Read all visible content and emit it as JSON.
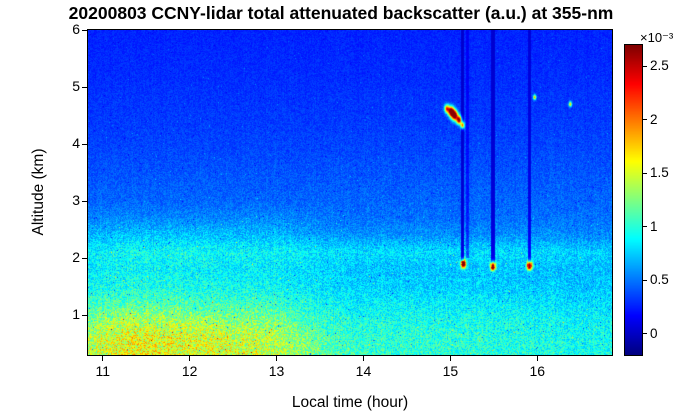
{
  "chart_data": {
    "type": "heatmap",
    "title": "20200803 CCNY-lidar total attenuated backscatter (a.u.) at 355-nm",
    "xlabel": "Local time (hour)",
    "ylabel": "Altitude (km)",
    "xlim": [
      10.83,
      16.86
    ],
    "ylim": [
      0.3,
      6
    ],
    "xticks": [
      11,
      12,
      13,
      14,
      15,
      16
    ],
    "yticks": [
      1,
      2,
      3,
      4,
      5,
      6
    ],
    "colorbar": {
      "label": "×10⁻³",
      "ticks": [
        0,
        0.5,
        1,
        1.5,
        2,
        2.5
      ],
      "cmin": -0.2,
      "cmax": 2.7,
      "colormap": "jet"
    },
    "grid": {
      "times": [
        10.83,
        11.08,
        11.33,
        11.58,
        11.84,
        12.09,
        12.34,
        12.59,
        12.84,
        13.09,
        13.34,
        13.59,
        13.85,
        14.1,
        14.35,
        14.6,
        14.85,
        15.1,
        15.35,
        15.6,
        15.86,
        16.11,
        16.36,
        16.61,
        16.86
      ],
      "altitudes": [
        6.0,
        5.7,
        5.4,
        5.1,
        4.8,
        4.5,
        4.2,
        3.9,
        3.6,
        3.3,
        3.0,
        2.7,
        2.4,
        2.1,
        1.8,
        1.5,
        1.2,
        0.9,
        0.6,
        0.3
      ],
      "values": [
        [
          0.26,
          0.26,
          0.26,
          0.26,
          0.26,
          0.26,
          0.26,
          0.26,
          0.26,
          0.26,
          0.26,
          0.26,
          0.26,
          0.26,
          0.26,
          0.26,
          0.26,
          0.26,
          0.26,
          0.26,
          0.26,
          0.26,
          0.26,
          0.26,
          0.26
        ],
        [
          0.27,
          0.27,
          0.27,
          0.27,
          0.27,
          0.27,
          0.27,
          0.27,
          0.27,
          0.27,
          0.27,
          0.27,
          0.27,
          0.27,
          0.27,
          0.27,
          0.27,
          0.27,
          0.27,
          0.27,
          0.27,
          0.27,
          0.27,
          0.27,
          0.27
        ],
        [
          0.28,
          0.28,
          0.28,
          0.28,
          0.28,
          0.28,
          0.28,
          0.28,
          0.28,
          0.28,
          0.28,
          0.28,
          0.28,
          0.28,
          0.28,
          0.28,
          0.28,
          0.28,
          0.28,
          0.28,
          0.28,
          0.28,
          0.28,
          0.28,
          0.28
        ],
        [
          0.29,
          0.29,
          0.29,
          0.29,
          0.29,
          0.29,
          0.29,
          0.29,
          0.29,
          0.29,
          0.29,
          0.29,
          0.29,
          0.29,
          0.29,
          0.29,
          0.29,
          0.29,
          0.29,
          0.29,
          0.29,
          0.29,
          0.29,
          0.29,
          0.29
        ],
        [
          0.31,
          0.31,
          0.31,
          0.31,
          0.31,
          0.31,
          0.31,
          0.31,
          0.31,
          0.31,
          0.31,
          0.31,
          0.31,
          0.31,
          0.31,
          0.31,
          0.31,
          0.31,
          0.31,
          0.31,
          0.31,
          0.31,
          0.31,
          0.31,
          0.31
        ],
        [
          0.32,
          0.32,
          0.32,
          0.32,
          0.32,
          0.32,
          0.32,
          0.32,
          0.32,
          0.32,
          0.32,
          0.32,
          0.32,
          0.32,
          0.32,
          0.32,
          0.32,
          0.32,
          0.32,
          0.32,
          0.32,
          0.32,
          0.32,
          0.32,
          0.32
        ],
        [
          0.34,
          0.34,
          0.34,
          0.34,
          0.34,
          0.34,
          0.34,
          0.34,
          0.34,
          0.34,
          0.34,
          0.34,
          0.34,
          0.34,
          0.34,
          0.34,
          0.34,
          0.34,
          0.34,
          0.34,
          0.34,
          0.34,
          0.34,
          0.34,
          0.34
        ],
        [
          0.36,
          0.36,
          0.36,
          0.36,
          0.36,
          0.36,
          0.36,
          0.36,
          0.36,
          0.36,
          0.36,
          0.36,
          0.36,
          0.36,
          0.36,
          0.36,
          0.36,
          0.36,
          0.36,
          0.36,
          0.36,
          0.36,
          0.36,
          0.36,
          0.36
        ],
        [
          0.39,
          0.39,
          0.39,
          0.39,
          0.39,
          0.39,
          0.39,
          0.39,
          0.39,
          0.39,
          0.39,
          0.39,
          0.39,
          0.39,
          0.39,
          0.39,
          0.39,
          0.39,
          0.39,
          0.39,
          0.39,
          0.39,
          0.39,
          0.39,
          0.39
        ],
        [
          0.42,
          0.42,
          0.42,
          0.42,
          0.42,
          0.42,
          0.42,
          0.42,
          0.42,
          0.42,
          0.42,
          0.42,
          0.42,
          0.42,
          0.42,
          0.42,
          0.42,
          0.42,
          0.42,
          0.42,
          0.42,
          0.42,
          0.42,
          0.42,
          0.42
        ],
        [
          0.45,
          0.45,
          0.45,
          0.45,
          0.45,
          0.45,
          0.45,
          0.45,
          0.45,
          0.45,
          0.45,
          0.45,
          0.45,
          0.45,
          0.45,
          0.45,
          0.45,
          0.45,
          0.45,
          0.45,
          0.45,
          0.45,
          0.45,
          0.45,
          0.45
        ],
        [
          0.55,
          0.55,
          0.55,
          0.55,
          0.55,
          0.55,
          0.55,
          0.55,
          0.55,
          0.55,
          0.52,
          0.5,
          0.48,
          0.48,
          0.48,
          0.48,
          0.48,
          0.48,
          0.48,
          0.48,
          0.48,
          0.48,
          0.48,
          0.48,
          0.48
        ],
        [
          0.7,
          0.7,
          0.72,
          0.72,
          0.72,
          0.72,
          0.72,
          0.7,
          0.7,
          0.68,
          0.65,
          0.6,
          0.58,
          0.58,
          0.58,
          0.58,
          0.58,
          0.58,
          0.58,
          0.58,
          0.58,
          0.58,
          0.56,
          0.56,
          0.56
        ],
        [
          0.88,
          0.9,
          0.92,
          0.92,
          0.92,
          0.92,
          0.9,
          0.9,
          0.88,
          0.88,
          0.85,
          0.82,
          0.8,
          0.8,
          0.8,
          0.8,
          0.8,
          0.8,
          0.8,
          0.8,
          0.8,
          0.78,
          0.76,
          0.76,
          0.76
        ],
        [
          0.85,
          0.86,
          0.88,
          0.88,
          0.88,
          0.86,
          0.85,
          0.84,
          0.84,
          0.82,
          0.8,
          0.76,
          0.72,
          0.72,
          0.72,
          0.72,
          0.72,
          0.72,
          0.72,
          0.72,
          0.72,
          0.7,
          0.7,
          0.7,
          0.7
        ],
        [
          0.92,
          0.94,
          0.95,
          0.95,
          0.94,
          0.92,
          0.92,
          0.9,
          0.9,
          0.88,
          0.84,
          0.8,
          0.76,
          0.76,
          0.75,
          0.75,
          0.75,
          0.75,
          0.75,
          0.75,
          0.74,
          0.74,
          0.72,
          0.72,
          0.72
        ],
        [
          1.05,
          1.1,
          1.12,
          1.12,
          1.1,
          1.08,
          1.08,
          1.05,
          1.05,
          1.0,
          0.95,
          0.9,
          0.86,
          0.85,
          0.85,
          0.85,
          0.85,
          0.85,
          0.85,
          0.84,
          0.84,
          0.82,
          0.8,
          0.8,
          0.8
        ],
        [
          1.25,
          1.32,
          1.38,
          1.38,
          1.35,
          1.32,
          1.3,
          1.28,
          1.25,
          1.2,
          1.1,
          1.0,
          0.95,
          0.95,
          0.95,
          0.95,
          0.95,
          0.94,
          0.94,
          0.92,
          0.92,
          0.9,
          0.88,
          0.88,
          0.88
        ],
        [
          1.42,
          1.5,
          1.55,
          1.55,
          1.52,
          1.5,
          1.48,
          1.45,
          1.42,
          1.35,
          1.25,
          1.1,
          1.02,
          1.0,
          1.0,
          1.0,
          1.0,
          0.98,
          0.98,
          0.96,
          0.96,
          0.94,
          0.92,
          0.92,
          0.92
        ],
        [
          1.45,
          1.52,
          1.58,
          1.58,
          1.55,
          1.52,
          1.5,
          1.48,
          1.45,
          1.38,
          1.28,
          1.12,
          1.05,
          1.02,
          1.02,
          1.02,
          1.02,
          1.0,
          1.0,
          0.98,
          0.98,
          0.96,
          0.94,
          0.94,
          0.94
        ]
      ]
    },
    "features": {
      "streaks": [
        {
          "t": 15.14,
          "alt_min": 1.95,
          "alt_max": 6.0,
          "width": 0.04,
          "atten": 0.1
        },
        {
          "t": 15.2,
          "alt_min": 2.0,
          "alt_max": 6.0,
          "width": 0.03,
          "atten": 0.5
        },
        {
          "t": 15.49,
          "alt_min": 1.85,
          "alt_max": 6.0,
          "width": 0.04,
          "atten": 0.12
        },
        {
          "t": 15.91,
          "alt_min": 1.85,
          "alt_max": 6.0,
          "width": 0.04,
          "atten": 0.22
        }
      ],
      "hotspots": [
        {
          "t": 14.96,
          "alt": 4.62,
          "v": 1.8,
          "st": 0.02,
          "sa": 0.05
        },
        {
          "t": 15.01,
          "alt": 4.57,
          "v": 2.7,
          "st": 0.025,
          "sa": 0.06
        },
        {
          "t": 15.05,
          "alt": 4.5,
          "v": 2.7,
          "st": 0.025,
          "sa": 0.06
        },
        {
          "t": 15.1,
          "alt": 4.42,
          "v": 2.4,
          "st": 0.02,
          "sa": 0.05
        },
        {
          "t": 15.14,
          "alt": 4.33,
          "v": 2.0,
          "st": 0.015,
          "sa": 0.04
        },
        {
          "t": 15.15,
          "alt": 1.9,
          "v": 2.7,
          "st": 0.02,
          "sa": 0.05
        },
        {
          "t": 15.49,
          "alt": 1.86,
          "v": 2.7,
          "st": 0.02,
          "sa": 0.05
        },
        {
          "t": 15.91,
          "alt": 1.87,
          "v": 2.7,
          "st": 0.02,
          "sa": 0.05
        },
        {
          "t": 15.97,
          "alt": 4.82,
          "v": 1.6,
          "st": 0.012,
          "sa": 0.03
        },
        {
          "t": 16.38,
          "alt": 4.7,
          "v": 1.5,
          "st": 0.012,
          "sa": 0.03
        }
      ]
    }
  }
}
